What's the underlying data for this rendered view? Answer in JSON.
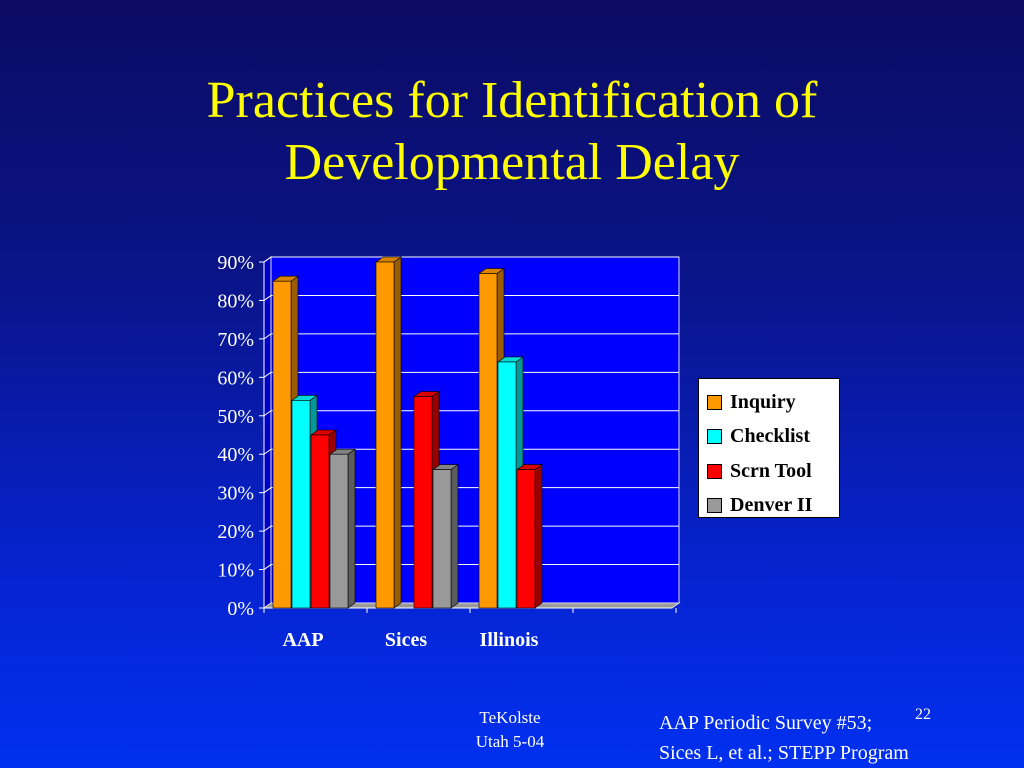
{
  "slide": {
    "title_line1": "Practices for Identification of",
    "title_line2": "Developmental Delay",
    "footer_left_line1": "TeKolste",
    "footer_left_line2": "Utah 5-04",
    "footer_right_line1": "AAP Periodic Survey #53;",
    "footer_right_line2": "Sices L, et al.; STEPP Program",
    "slide_number": "22"
  },
  "chart_data": {
    "type": "bar",
    "categories": [
      "AAP",
      "Sices",
      "Illinois"
    ],
    "series": [
      {
        "name": "Inquiry",
        "values": [
          85,
          90,
          87
        ],
        "color": "#ff9900"
      },
      {
        "name": "Checklist",
        "values": [
          54,
          null,
          64
        ],
        "color": "#00ffff"
      },
      {
        "name": "Scrn Tool",
        "values": [
          45,
          55,
          36
        ],
        "color": "#ff0000"
      },
      {
        "name": "Denver II",
        "values": [
          40,
          36,
          null
        ],
        "color": "#999999"
      }
    ],
    "ylim": [
      0,
      90
    ],
    "yticks": [
      "0%",
      "10%",
      "20%",
      "30%",
      "40%",
      "50%",
      "60%",
      "70%",
      "80%",
      "90%"
    ],
    "grid": true,
    "legend_position": "right",
    "plot_background": "#0000ff"
  }
}
